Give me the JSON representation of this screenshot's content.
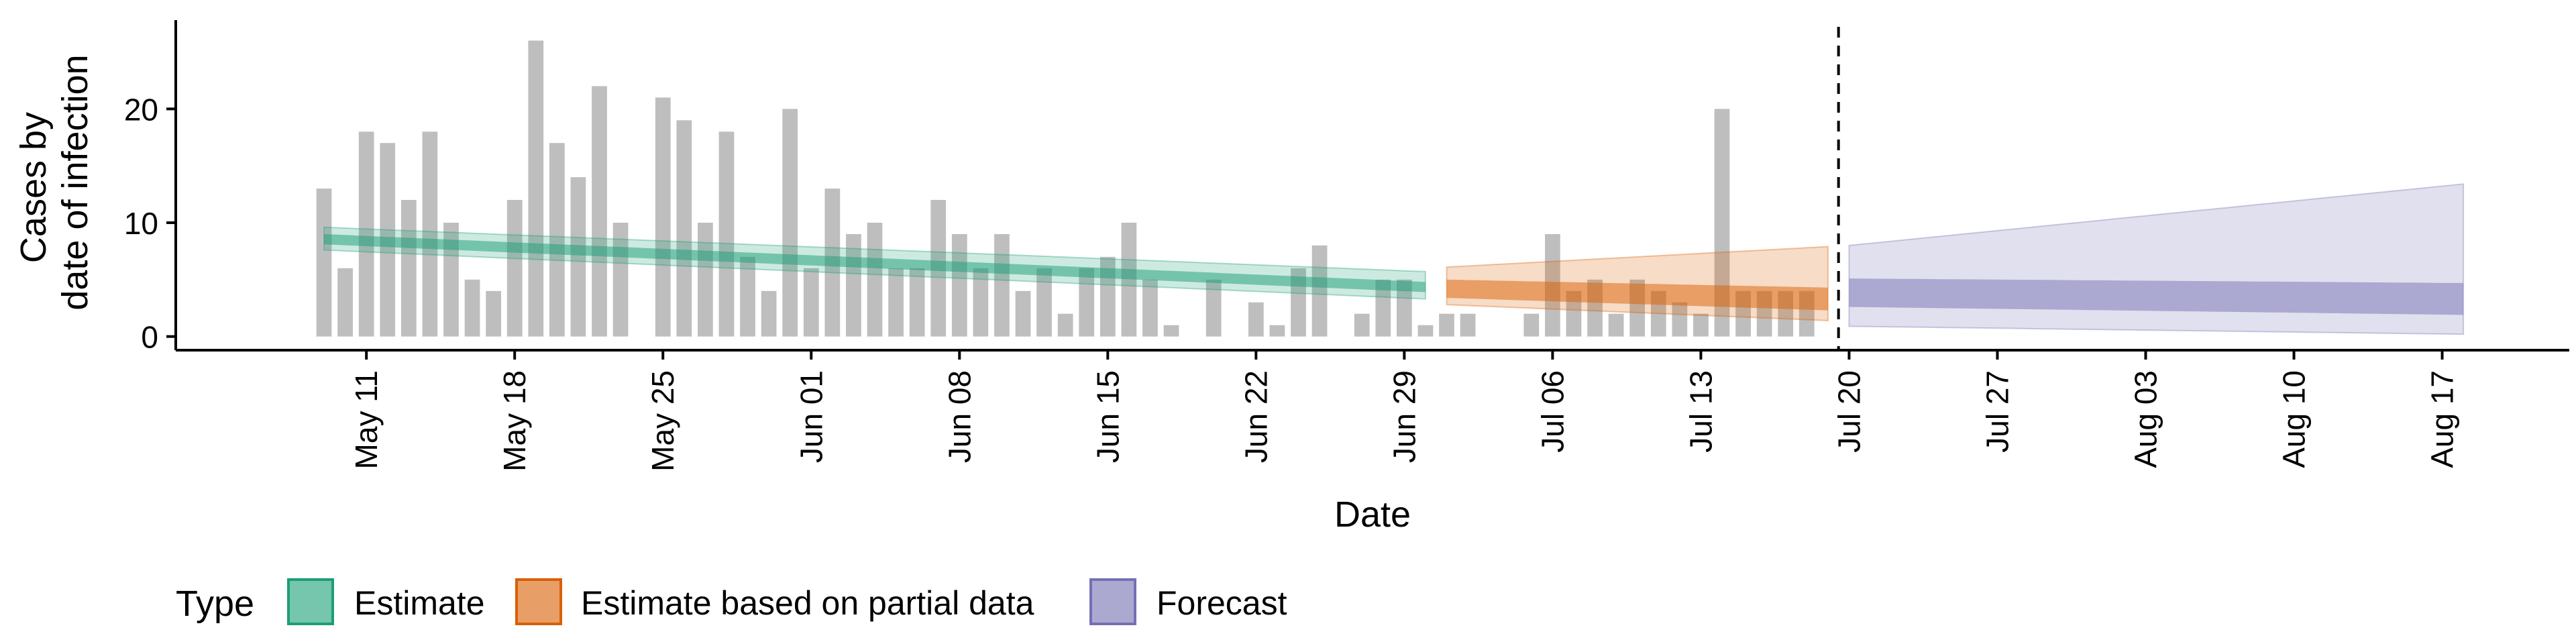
{
  "chart_data": {
    "type": "bar",
    "xlabel": "Date",
    "ylabel": [
      "Cases by",
      "date of infection"
    ],
    "xlim": [
      "2020-05-02",
      "2020-08-23"
    ],
    "ylim": [
      -1.2,
      27.8
    ],
    "y_ticks": [
      0,
      10,
      20
    ],
    "x_ticks": [
      {
        "date": "2020-05-11",
        "label": "May 11"
      },
      {
        "date": "2020-05-18",
        "label": "May 18"
      },
      {
        "date": "2020-05-25",
        "label": "May 25"
      },
      {
        "date": "2020-06-01",
        "label": "Jun 01"
      },
      {
        "date": "2020-06-08",
        "label": "Jun 08"
      },
      {
        "date": "2020-06-15",
        "label": "Jun 15"
      },
      {
        "date": "2020-06-22",
        "label": "Jun 22"
      },
      {
        "date": "2020-06-29",
        "label": "Jun 29"
      },
      {
        "date": "2020-07-06",
        "label": "Jul 06"
      },
      {
        "date": "2020-07-13",
        "label": "Jul 13"
      },
      {
        "date": "2020-07-20",
        "label": "Jul 20"
      },
      {
        "date": "2020-07-27",
        "label": "Jul 27"
      },
      {
        "date": "2020-08-03",
        "label": "Aug 03"
      },
      {
        "date": "2020-08-10",
        "label": "Aug 10"
      },
      {
        "date": "2020-08-17",
        "label": "Aug 17"
      }
    ],
    "bars": {
      "start_date": "2020-05-09",
      "values": [
        13,
        6,
        18,
        17,
        12,
        18,
        10,
        5,
        4,
        12,
        26,
        17,
        14,
        22,
        10,
        0,
        21,
        19,
        10,
        18,
        7,
        4,
        20,
        6,
        13,
        9,
        10,
        6,
        6,
        12,
        9,
        6,
        9,
        4,
        6,
        2,
        6,
        7,
        10,
        5,
        1,
        0,
        5,
        0,
        3,
        1,
        6,
        8,
        0,
        2,
        5,
        5,
        1,
        2,
        2,
        0,
        0,
        2,
        9,
        4,
        5,
        2,
        5,
        4,
        3,
        2,
        20,
        4,
        4,
        4,
        4
      ],
      "color": "#bebebe"
    },
    "vline_date": "2020-07-19",
    "series": [
      {
        "name": "Estimate",
        "color": "#1b9e77",
        "start": "2020-05-09",
        "end": "2020-06-30",
        "median": [
          8.6,
          4.4
        ],
        "inner": [
          [
            8.1,
            9.0
          ],
          [
            3.9,
            4.8
          ]
        ],
        "outer": [
          [
            7.6,
            9.6
          ],
          [
            3.3,
            5.7
          ]
        ]
      },
      {
        "name": "Estimate based on partial data",
        "color": "#d95f02",
        "start": "2020-07-01",
        "end": "2020-07-19",
        "median": [
          4.3,
          3.7
        ],
        "inner": [
          [
            3.4,
            5.0
          ],
          [
            2.3,
            4.3
          ]
        ],
        "outer": [
          [
            2.8,
            6.1
          ],
          [
            1.4,
            7.9
          ]
        ]
      },
      {
        "name": "Forecast",
        "color": "#7570b3",
        "start": "2020-07-20",
        "end": "2020-08-18",
        "median": [
          4.0,
          3.4
        ],
        "inner": [
          [
            2.6,
            5.1
          ],
          [
            1.9,
            4.7
          ]
        ],
        "outer": [
          [
            0.9,
            8.0
          ],
          [
            0.2,
            13.4
          ]
        ]
      }
    ],
    "legend": {
      "title": "Type",
      "position": "bottom",
      "items": [
        {
          "label": "Estimate",
          "color": "#1b9e77"
        },
        {
          "label": "Estimate based on partial data",
          "color": "#d95f02"
        },
        {
          "label": "Forecast",
          "color": "#7570b3"
        }
      ]
    }
  }
}
